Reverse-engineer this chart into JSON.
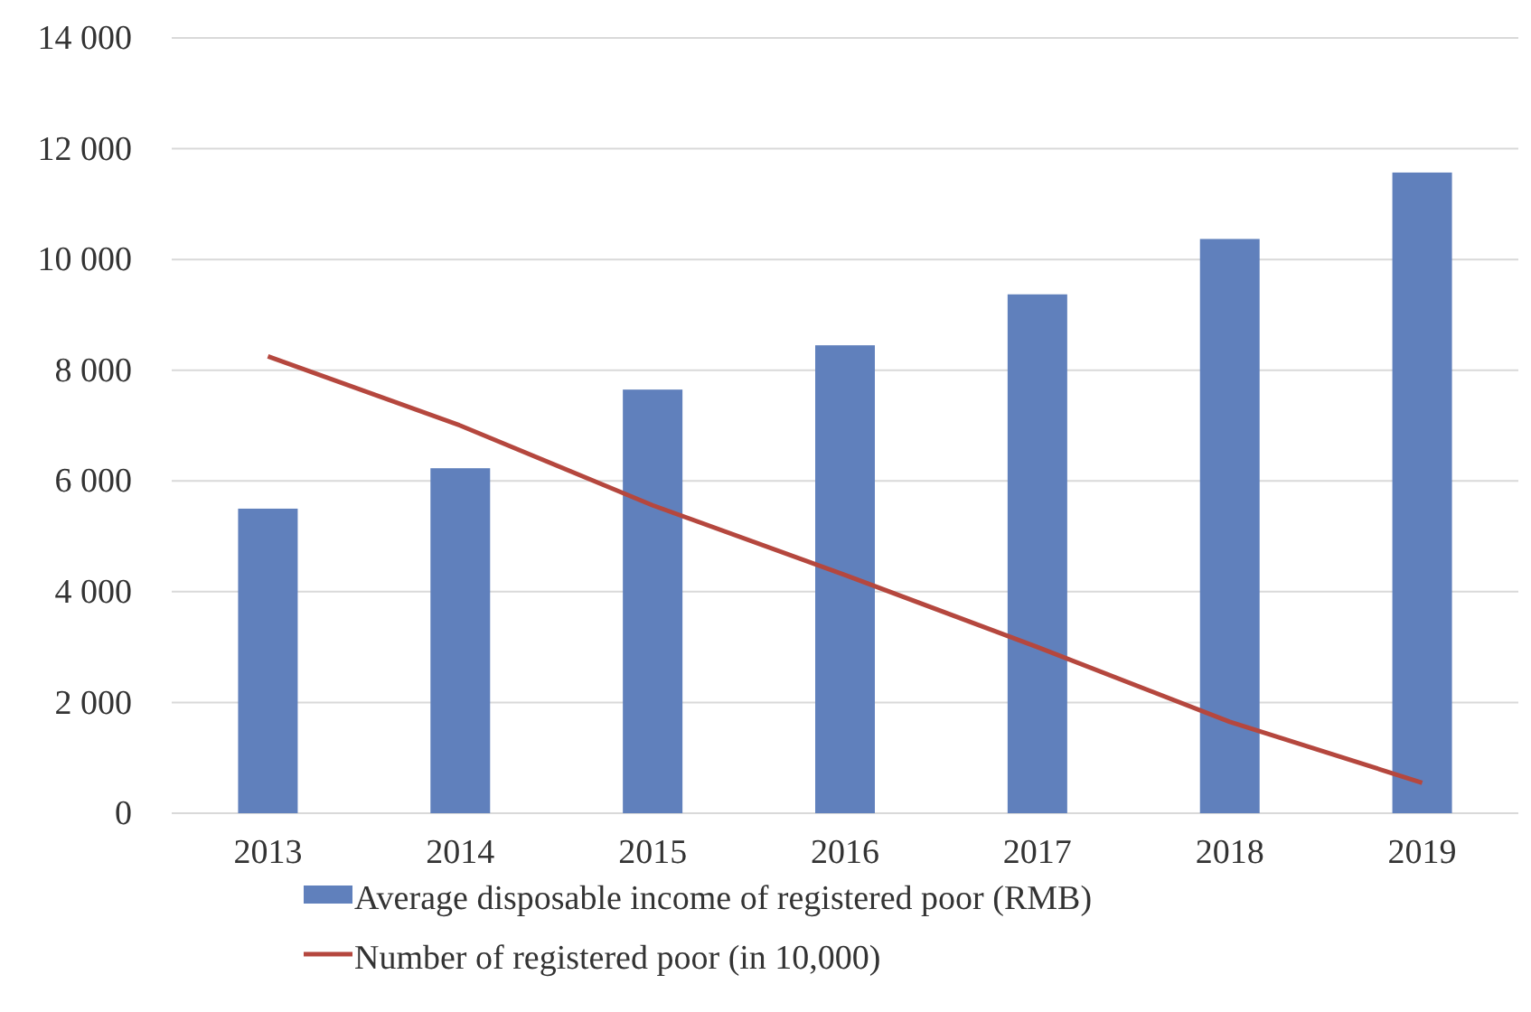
{
  "chart_data": {
    "type": "bar",
    "categories": [
      "2013",
      "2014",
      "2015",
      "2016",
      "2017",
      "2018",
      "2019"
    ],
    "series": [
      {
        "name": "Average disposable income of registered poor (RMB)",
        "color": "#6080bc",
        "values": [
          5500,
          6230,
          7650,
          8450,
          9370,
          10370,
          11570
        ]
      },
      {
        "name": "Number of registered poor (in 10,000)",
        "color": "#b5473e",
        "type": "line",
        "values": [
          8250,
          7000,
          5560,
          4300,
          3000,
          1650,
          550
        ]
      }
    ],
    "ylim": [
      0,
      14000
    ],
    "yticks": [
      {
        "value": 0,
        "label": "0"
      },
      {
        "value": 2000,
        "label": "2 000"
      },
      {
        "value": 4000,
        "label": "4 000"
      },
      {
        "value": 6000,
        "label": "6 000"
      },
      {
        "value": 8000,
        "label": "8 000"
      },
      {
        "value": 10000,
        "label": "10 000"
      },
      {
        "value": 12000,
        "label": "12 000"
      },
      {
        "value": 14000,
        "label": "14 000"
      }
    ],
    "grid": "y",
    "legend": "bottom",
    "marker": "none",
    "line_style": "solid"
  }
}
